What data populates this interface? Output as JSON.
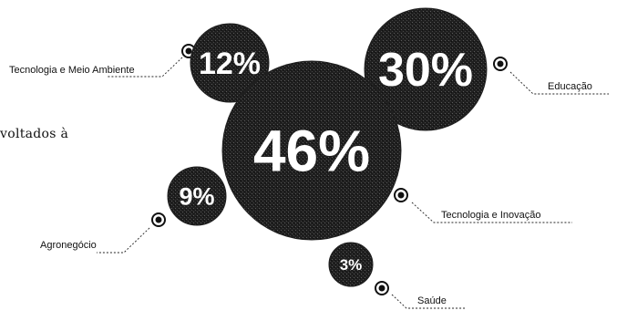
{
  "page": {
    "text_fragment": "voltados à"
  },
  "chart_data": {
    "type": "bubble",
    "title": "",
    "values_unit": "%",
    "bubbles": [
      {
        "label": "Tecnologia e Meio Ambiente",
        "value": 12,
        "value_label": "12%"
      },
      {
        "label": "Educação",
        "value": 30,
        "value_label": "30%"
      },
      {
        "label": "Tecnologia e Inovação",
        "value": 46,
        "value_label": "46%"
      },
      {
        "label": "Agronegócio",
        "value": 9,
        "value_label": "9%"
      },
      {
        "label": "Saúde",
        "value": 3,
        "value_label": "3%"
      }
    ],
    "colors": {
      "bubble": "#1f1f1f",
      "text_on_bubble": "#ffffff",
      "leader": "#222222"
    }
  }
}
